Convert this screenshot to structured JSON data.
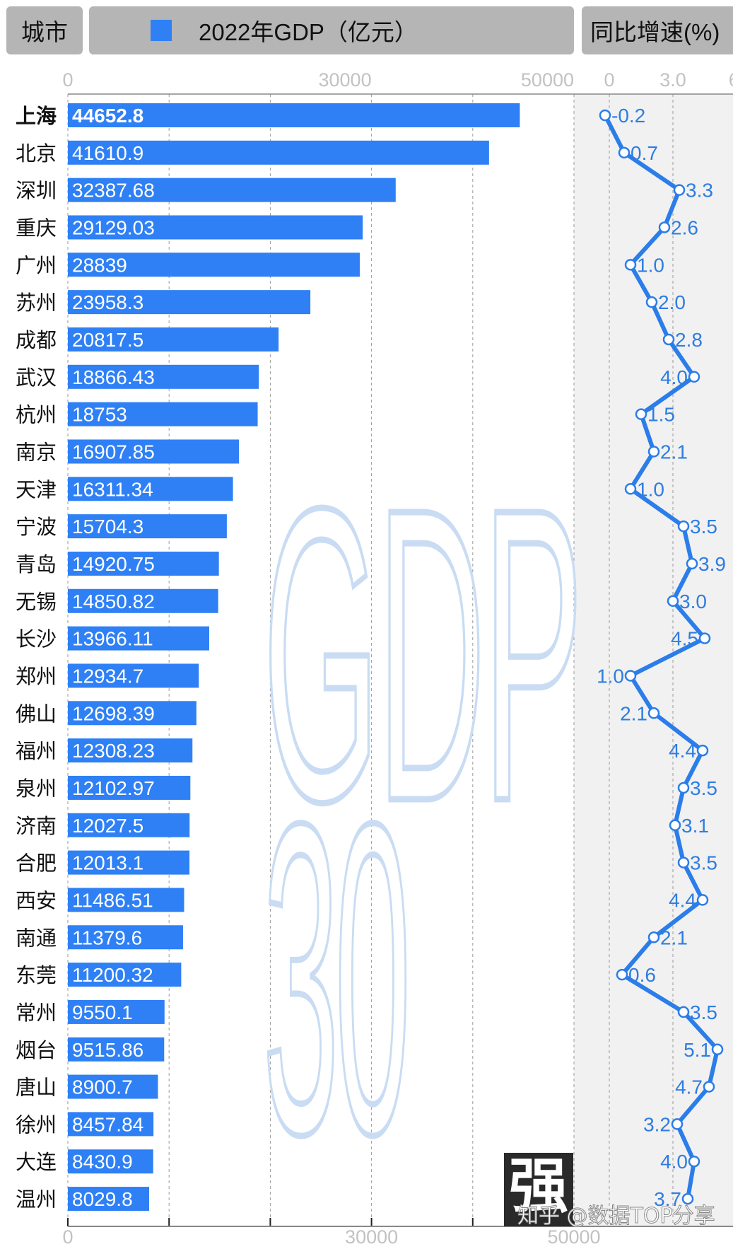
{
  "header": {
    "city_label": "城市",
    "gdp_label": "2022年GDP（亿元）",
    "growth_label": "同比增速(%)"
  },
  "watermark": {
    "big_text_1": "GDP",
    "big_text_2": "30",
    "badge": "强",
    "credit": "知乎 @数据TOP分享"
  },
  "colors": {
    "bar": "#2f80f5",
    "line": "#2b7de9",
    "header_bg": "#b5b5b5",
    "growth_panel_bg": "#f1f1f1",
    "watermark": "#c9dcf3"
  },
  "chart_data": [
    {
      "type": "bar",
      "orientation": "horizontal",
      "series_name": "2022年GDP（亿元）",
      "xlim": [
        0,
        50000
      ],
      "tick_labels_top": [
        "0",
        "30000",
        "50000"
      ],
      "tick_labels_bottom": [
        "0",
        "30000",
        "50000"
      ],
      "grid": true,
      "categories": [
        "上海",
        "北京",
        "深圳",
        "重庆",
        "广州",
        "苏州",
        "成都",
        "武汉",
        "杭州",
        "南京",
        "天津",
        "宁波",
        "青岛",
        "无锡",
        "长沙",
        "郑州",
        "佛山",
        "福州",
        "泉州",
        "济南",
        "合肥",
        "西安",
        "南通",
        "东莞",
        "常州",
        "烟台",
        "唐山",
        "徐州",
        "大连",
        "温州"
      ],
      "values": [
        "44652.8",
        "41610.9",
        "32387.68",
        "29129.03",
        "28839",
        "23958.3",
        "20817.5",
        "18866.43",
        "18753",
        "16907.85",
        "16311.34",
        "15704.3",
        "14920.75",
        "14850.82",
        "13966.11",
        "12934.7",
        "12698.39",
        "12308.23",
        "12102.97",
        "12027.5",
        "12013.1",
        "11486.51",
        "11379.6",
        "11200.32",
        "9550.1",
        "9515.86",
        "8900.7",
        "8457.84",
        "8430.9",
        "8029.8"
      ]
    },
    {
      "type": "line",
      "series_name": "同比增速(%)",
      "xlim": [
        -0.3,
        6.0
      ],
      "tick_labels_top": [
        "0",
        "3.0",
        "6."
      ],
      "grid": true,
      "values": [
        "-0.2",
        "0.7",
        "3.3",
        "2.6",
        "1.0",
        "2.0",
        "2.8",
        "4.0",
        "1.5",
        "2.1",
        "1.0",
        "3.5",
        "3.9",
        "3.0",
        "4.5",
        "1.0",
        "2.1",
        "4.4",
        "3.5",
        "3.1",
        "3.5",
        "4.4",
        "2.1",
        "0.6",
        "3.5",
        "5.1",
        "4.7",
        "3.2",
        "4.0",
        "3.7"
      ]
    }
  ]
}
